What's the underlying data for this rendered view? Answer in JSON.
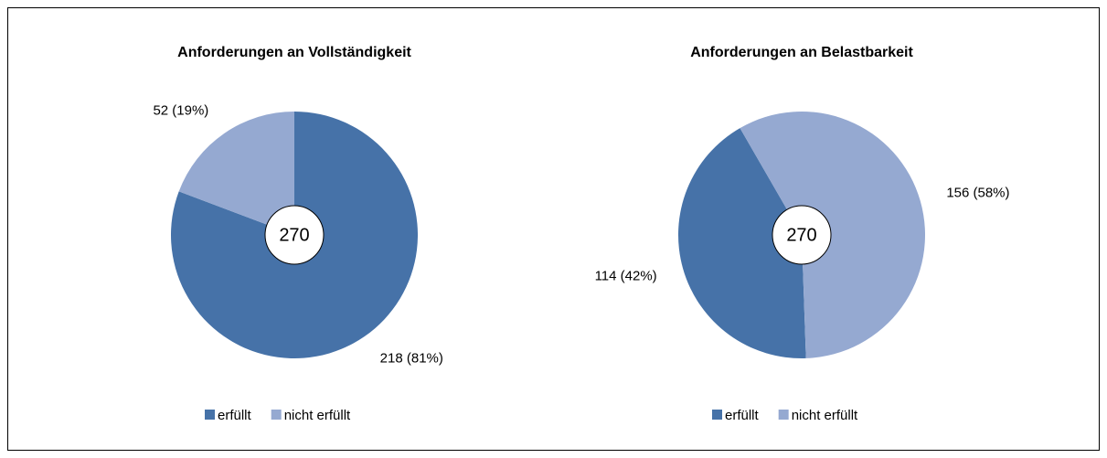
{
  "chart_data": [
    {
      "type": "pie",
      "title": "Anforderungen an Vollständigkeit",
      "categories": [
        "erfüllt",
        "nicht erfüllt"
      ],
      "values": [
        218,
        52
      ],
      "value_labels": [
        "218 (81%)",
        "52 (19%)"
      ],
      "colors": [
        "#4672a8",
        "#95a9d1"
      ],
      "total": 270,
      "start_angle": 0
    },
    {
      "type": "pie",
      "title": "Anforderungen an Belastbarkeit",
      "categories": [
        "erfüllt",
        "nicht erfüllt"
      ],
      "values": [
        114,
        156
      ],
      "value_labels": [
        "114 (42%)",
        "156 (58%)"
      ],
      "colors": [
        "#4672a8",
        "#95a9d1"
      ],
      "total": 270,
      "start_angle": 178
    }
  ]
}
